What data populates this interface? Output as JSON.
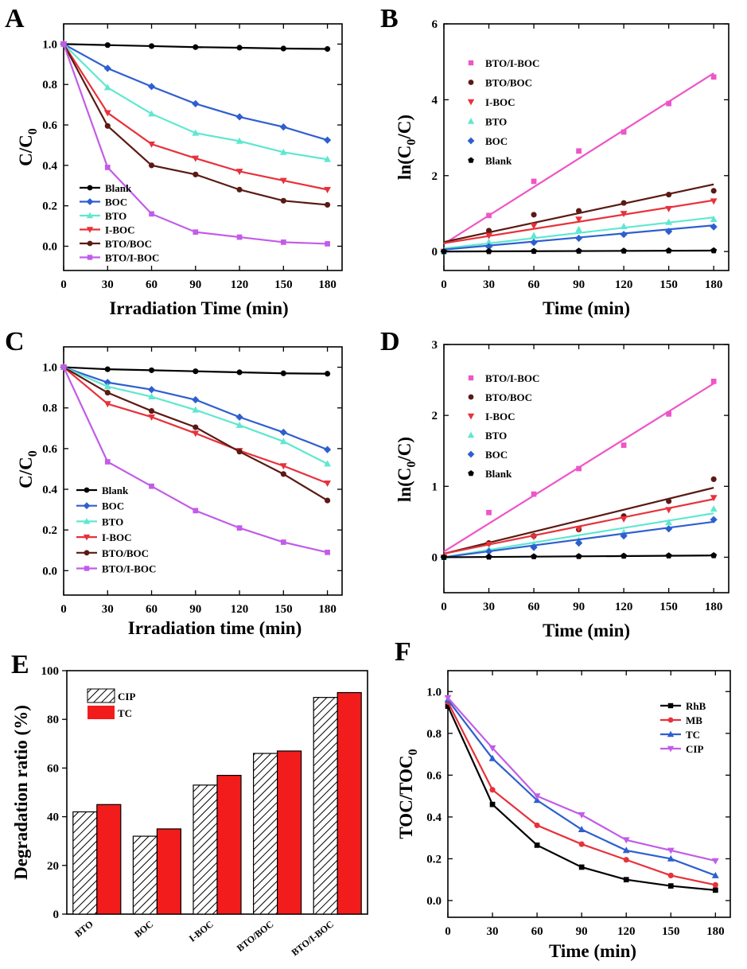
{
  "chart_data": [
    {
      "panel": "A",
      "type": "line",
      "xlabel": "Irradiation Time (min)",
      "ylabel": "C/C0",
      "ylabel_main": "C/C",
      "ylabel_sub": "0",
      "xlim": [
        0,
        190
      ],
      "ylim": [
        -0.12,
        1.1
      ],
      "xticks": [
        "0",
        "30",
        "60",
        "90",
        "120",
        "150",
        "180"
      ],
      "yticks": [
        "0.0",
        "0.2",
        "0.4",
        "0.6",
        "0.8",
        "1.0"
      ],
      "x": [
        0,
        30,
        60,
        90,
        120,
        150,
        180
      ],
      "legend_position": "lower-left",
      "series": [
        {
          "name": "Blank",
          "color": "#000000",
          "marker": "circle",
          "values": [
            1.0,
            0.995,
            0.99,
            0.985,
            0.982,
            0.978,
            0.976
          ]
        },
        {
          "name": "BOC",
          "color": "#2e5fd0",
          "marker": "diamond",
          "values": [
            1.0,
            0.88,
            0.79,
            0.705,
            0.64,
            0.59,
            0.525
          ]
        },
        {
          "name": "BTO",
          "color": "#5ee8d0",
          "marker": "triangle-up",
          "values": [
            1.0,
            0.785,
            0.655,
            0.56,
            0.52,
            0.465,
            0.43
          ]
        },
        {
          "name": "I-BOC",
          "color": "#e8313a",
          "marker": "triangle-down",
          "values": [
            1.0,
            0.66,
            0.505,
            0.435,
            0.37,
            0.325,
            0.28
          ]
        },
        {
          "name": "BTO/BOC",
          "color": "#5a1a14",
          "marker": "circle",
          "values": [
            1.0,
            0.595,
            0.4,
            0.355,
            0.28,
            0.225,
            0.205
          ]
        },
        {
          "name": "BTO/I-BOC",
          "color": "#c25ce8",
          "marker": "square",
          "values": [
            1.0,
            0.39,
            0.16,
            0.07,
            0.045,
            0.02,
            0.012
          ]
        }
      ]
    },
    {
      "panel": "B",
      "type": "scatter",
      "xlabel": "Time (min)",
      "ylabel": "ln(C0/C)",
      "ylabel_main": "ln(C",
      "ylabel_sub": "0",
      "ylabel_tail": "/C)",
      "xlim": [
        0,
        190
      ],
      "ylim": [
        -0.5,
        6
      ],
      "xticks": [
        "0",
        "30",
        "60",
        "90",
        "120",
        "150",
        "180"
      ],
      "yticks": [
        "0",
        "2",
        "4",
        "6"
      ],
      "x": [
        0,
        30,
        60,
        90,
        120,
        150,
        180
      ],
      "legend_position": "top-left",
      "series": [
        {
          "name": "BTO/I-BOC",
          "color": "#ee55c8",
          "marker": "square",
          "values": [
            0.0,
            0.95,
            1.85,
            2.65,
            3.15,
            3.9,
            4.6
          ],
          "fit": [
            0.2,
            4.7
          ]
        },
        {
          "name": "BTO/BOC",
          "color": "#5a1a14",
          "marker": "circle",
          "values": [
            0.0,
            0.55,
            0.97,
            1.07,
            1.28,
            1.5,
            1.6
          ],
          "fit": [
            0.25,
            1.77
          ]
        },
        {
          "name": "I-BOC",
          "color": "#e8313a",
          "marker": "triangle-down",
          "values": [
            0.0,
            0.42,
            0.68,
            0.85,
            1.0,
            1.13,
            1.33
          ],
          "fit": [
            0.22,
            1.35
          ]
        },
        {
          "name": "BTO",
          "color": "#5ee8d0",
          "marker": "triangle-up",
          "values": [
            0.0,
            0.25,
            0.42,
            0.58,
            0.66,
            0.77,
            0.85
          ],
          "fit": [
            0.08,
            0.9
          ]
        },
        {
          "name": "BOC",
          "color": "#2e5fd0",
          "marker": "diamond",
          "values": [
            0.0,
            0.13,
            0.24,
            0.35,
            0.45,
            0.53,
            0.65
          ],
          "fit": [
            0.05,
            0.69
          ]
        },
        {
          "name": "Blank",
          "color": "#000000",
          "marker": "pentagon",
          "values": [
            0.0,
            0.005,
            0.01,
            0.015,
            0.018,
            0.022,
            0.025
          ],
          "fit": [
            0.0,
            0.025
          ]
        }
      ]
    },
    {
      "panel": "C",
      "type": "line",
      "xlabel": "Irradiation time (min)",
      "ylabel": "C/C0",
      "ylabel_main": "C/C",
      "ylabel_sub": "0",
      "xlim": [
        0,
        190
      ],
      "ylim": [
        -0.12,
        1.1
      ],
      "xticks": [
        "0",
        "30",
        "60",
        "90",
        "120",
        "150",
        "180"
      ],
      "yticks": [
        "0.0",
        "0.2",
        "0.4",
        "0.6",
        "0.8",
        "1.0"
      ],
      "x": [
        0,
        30,
        60,
        90,
        120,
        150,
        180
      ],
      "legend_position": "lower-left",
      "series": [
        {
          "name": "Blank",
          "color": "#000000",
          "marker": "circle",
          "values": [
            1.0,
            0.99,
            0.985,
            0.98,
            0.975,
            0.97,
            0.968
          ]
        },
        {
          "name": "BOC",
          "color": "#2e5fd0",
          "marker": "diamond",
          "values": [
            1.0,
            0.925,
            0.89,
            0.84,
            0.755,
            0.68,
            0.595
          ]
        },
        {
          "name": "BTO",
          "color": "#5ee8d0",
          "marker": "triangle-up",
          "values": [
            1.0,
            0.905,
            0.855,
            0.79,
            0.715,
            0.635,
            0.525
          ]
        },
        {
          "name": "I-BOC",
          "color": "#e8313a",
          "marker": "triangle-down",
          "values": [
            1.0,
            0.82,
            0.755,
            0.675,
            0.59,
            0.515,
            0.43
          ]
        },
        {
          "name": "BTO/BOC",
          "color": "#5a1a14",
          "marker": "circle",
          "values": [
            1.0,
            0.875,
            0.785,
            0.705,
            0.585,
            0.475,
            0.345
          ]
        },
        {
          "name": "BTO/I-BOC",
          "color": "#c25ce8",
          "marker": "square",
          "values": [
            1.0,
            0.535,
            0.415,
            0.295,
            0.21,
            0.14,
            0.09
          ]
        }
      ]
    },
    {
      "panel": "D",
      "type": "scatter",
      "xlabel": "Time (min)",
      "ylabel": "ln(C0/C)",
      "ylabel_main": "ln(C",
      "ylabel_sub": "0",
      "ylabel_tail": "/C)",
      "xlim": [
        0,
        190
      ],
      "ylim": [
        -0.5,
        3
      ],
      "xticks": [
        "0",
        "30",
        "60",
        "90",
        "120",
        "150",
        "180"
      ],
      "yticks": [
        "0",
        "1",
        "2",
        "3"
      ],
      "x": [
        0,
        30,
        60,
        90,
        120,
        150,
        180
      ],
      "legend_position": "top-left",
      "series": [
        {
          "name": "BTO/I-BOC",
          "color": "#ee55c8",
          "marker": "square",
          "values": [
            0.0,
            0.63,
            0.89,
            1.25,
            1.58,
            2.02,
            2.48
          ],
          "fit": [
            0.08,
            2.45
          ]
        },
        {
          "name": "BTO/BOC",
          "color": "#5a1a14",
          "marker": "circle",
          "values": [
            0.0,
            0.2,
            0.3,
            0.39,
            0.58,
            0.79,
            1.1
          ],
          "fit": [
            0.05,
            0.98
          ]
        },
        {
          "name": "I-BOC",
          "color": "#e8313a",
          "marker": "triangle-down",
          "values": [
            0.0,
            0.18,
            0.29,
            0.4,
            0.54,
            0.67,
            0.84
          ],
          "fit": [
            0.05,
            0.82
          ]
        },
        {
          "name": "BTO",
          "color": "#5ee8d0",
          "marker": "triangle-up",
          "values": [
            0.0,
            0.11,
            0.18,
            0.24,
            0.35,
            0.49,
            0.68
          ],
          "fit": [
            0.0,
            0.62
          ]
        },
        {
          "name": "BOC",
          "color": "#2e5fd0",
          "marker": "diamond",
          "values": [
            0.0,
            0.08,
            0.14,
            0.2,
            0.3,
            0.4,
            0.53
          ],
          "fit": [
            0.0,
            0.5
          ]
        },
        {
          "name": "Blank",
          "color": "#000000",
          "marker": "pentagon",
          "values": [
            0.0,
            0.005,
            0.01,
            0.013,
            0.018,
            0.022,
            0.025
          ],
          "fit": [
            0.0,
            0.025
          ]
        }
      ]
    },
    {
      "panel": "E",
      "type": "bar",
      "xlabel": "",
      "ylabel": "Degradation ratio (%)",
      "ylim": [
        0,
        100
      ],
      "yticks": [
        "0",
        "20",
        "40",
        "60",
        "80",
        "100"
      ],
      "categories": [
        "BTO",
        "BOC",
        "I-BOC",
        "BTO/BOC",
        "BTO/I-BOC"
      ],
      "legend_position": "top-left",
      "series": [
        {
          "name": "CIP",
          "color": "#ffffff",
          "pattern": "hatch",
          "values": [
            42,
            32,
            53,
            66,
            89
          ]
        },
        {
          "name": "TC",
          "color": "#f21c1c",
          "pattern": "solid",
          "values": [
            45,
            35,
            57,
            67,
            91
          ]
        }
      ]
    },
    {
      "panel": "F",
      "type": "line",
      "xlabel": "Time (min)",
      "ylabel": "TOC/TOC0",
      "ylabel_main": "TOC/TOC",
      "ylabel_sub": "0",
      "xlim": [
        0,
        190
      ],
      "ylim": [
        -0.08,
        1.1
      ],
      "xticks": [
        "0",
        "30",
        "60",
        "90",
        "120",
        "150",
        "180"
      ],
      "yticks": [
        "0.0",
        "0.2",
        "0.4",
        "0.6",
        "0.8",
        "1.0"
      ],
      "x": [
        0,
        30,
        60,
        90,
        120,
        150,
        180
      ],
      "legend_position": "top-right",
      "series": [
        {
          "name": "RhB",
          "color": "#000000",
          "marker": "square",
          "values": [
            0.93,
            0.46,
            0.265,
            0.16,
            0.1,
            0.07,
            0.05
          ]
        },
        {
          "name": "MB",
          "color": "#e8313a",
          "marker": "circle",
          "values": [
            0.95,
            0.53,
            0.36,
            0.27,
            0.195,
            0.12,
            0.075
          ]
        },
        {
          "name": "TC",
          "color": "#2e5fd0",
          "marker": "triangle-up",
          "values": [
            0.96,
            0.68,
            0.48,
            0.34,
            0.24,
            0.2,
            0.12
          ]
        },
        {
          "name": "CIP",
          "color": "#c25ce8",
          "marker": "triangle-down",
          "values": [
            0.97,
            0.73,
            0.5,
            0.41,
            0.29,
            0.24,
            0.19
          ]
        }
      ]
    }
  ]
}
